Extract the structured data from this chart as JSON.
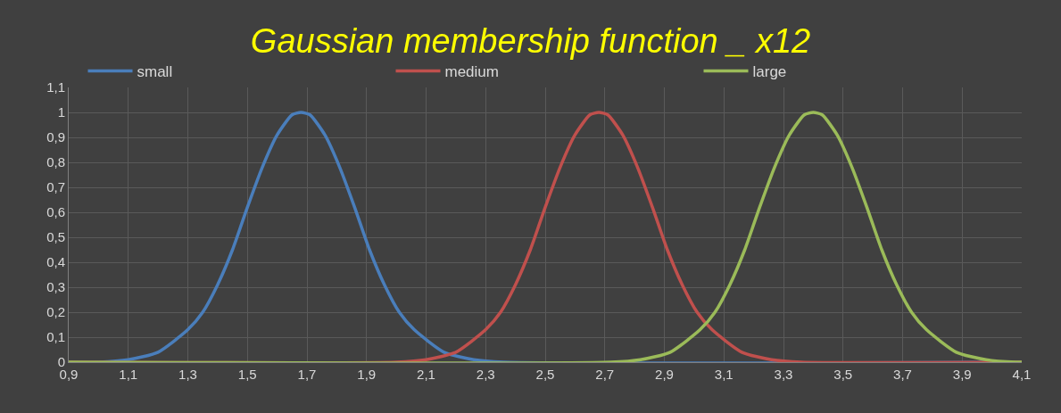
{
  "chart_data": {
    "type": "line",
    "title": "Gaussian membership function _ x12",
    "xlim": [
      0.9,
      4.1
    ],
    "ylim": [
      0,
      1.1
    ],
    "xticks": [
      {
        "value": 0.9,
        "label": "0,9"
      },
      {
        "value": 1.1,
        "label": "1,1"
      },
      {
        "value": 1.3,
        "label": "1,3"
      },
      {
        "value": 1.5,
        "label": "1,5"
      },
      {
        "value": 1.7,
        "label": "1,7"
      },
      {
        "value": 1.9,
        "label": "1,9"
      },
      {
        "value": 2.1,
        "label": "2,1"
      },
      {
        "value": 2.3,
        "label": "2,3"
      },
      {
        "value": 2.5,
        "label": "2,5"
      },
      {
        "value": 2.7,
        "label": "2,7"
      },
      {
        "value": 2.9,
        "label": "2,9"
      },
      {
        "value": 3.1,
        "label": "3,1"
      },
      {
        "value": 3.3,
        "label": "3,3"
      },
      {
        "value": 3.5,
        "label": "3,5"
      },
      {
        "value": 3.7,
        "label": "3,7"
      },
      {
        "value": 3.9,
        "label": "3,9"
      },
      {
        "value": 4.1,
        "label": "4,1"
      }
    ],
    "yticks": [
      0,
      {
        "value": 0.1,
        "label": "0,1"
      },
      {
        "value": 0.2,
        "label": "0,2"
      },
      {
        "value": 0.3,
        "label": "0,3"
      },
      {
        "value": 0.4,
        "label": "0,4"
      },
      {
        "value": 0.5,
        "label": "0,5"
      },
      {
        "value": 0.6,
        "label": "0,6"
      },
      {
        "value": 0.7,
        "label": "0,7"
      },
      {
        "value": 0.8,
        "label": "0,8"
      },
      {
        "value": 0.9,
        "label": "0,9"
      },
      1,
      {
        "value": 1.1,
        "label": "1,1"
      }
    ],
    "grid": true,
    "legend": "top",
    "marker": "none",
    "line_style": "solid",
    "series": [
      {
        "name": "small",
        "color": "#4a7ebb",
        "x": [
          0.9,
          1.0,
          1.1,
          1.2,
          1.3,
          1.35,
          1.4,
          1.45,
          1.5,
          1.55,
          1.6,
          1.65,
          1.68,
          1.71,
          1.76,
          1.81,
          1.86,
          1.91,
          1.96,
          2.01,
          2.06,
          2.16,
          2.26,
          2.36,
          4.1
        ],
        "values": [
          0,
          0,
          0.01,
          0.04,
          0.13,
          0.2,
          0.31,
          0.45,
          0.62,
          0.78,
          0.91,
          0.99,
          1,
          0.99,
          0.91,
          0.78,
          0.62,
          0.45,
          0.31,
          0.2,
          0.13,
          0.04,
          0.01,
          0,
          0
        ]
      },
      {
        "name": "medium",
        "color": "#c0504d",
        "x": [
          0.9,
          2.0,
          2.1,
          2.2,
          2.3,
          2.35,
          2.4,
          2.45,
          2.5,
          2.55,
          2.6,
          2.65,
          2.68,
          2.71,
          2.76,
          2.81,
          2.86,
          2.91,
          2.96,
          3.01,
          3.06,
          3.16,
          3.26,
          3.36,
          4.1
        ],
        "values": [
          0,
          0,
          0.01,
          0.04,
          0.13,
          0.2,
          0.31,
          0.45,
          0.62,
          0.78,
          0.91,
          0.99,
          1,
          0.99,
          0.91,
          0.78,
          0.62,
          0.45,
          0.31,
          0.2,
          0.13,
          0.04,
          0.01,
          0,
          0
        ]
      },
      {
        "name": "large",
        "color": "#9bbb59",
        "x": [
          0.9,
          2.72,
          2.82,
          2.92,
          3.02,
          3.07,
          3.12,
          3.17,
          3.22,
          3.27,
          3.32,
          3.37,
          3.4,
          3.43,
          3.48,
          3.53,
          3.58,
          3.63,
          3.68,
          3.73,
          3.78,
          3.88,
          3.98,
          4.08,
          4.1
        ],
        "values": [
          0,
          0,
          0.01,
          0.04,
          0.13,
          0.2,
          0.31,
          0.45,
          0.62,
          0.78,
          0.91,
          0.99,
          1,
          0.99,
          0.91,
          0.78,
          0.62,
          0.45,
          0.31,
          0.2,
          0.13,
          0.04,
          0.01,
          0,
          0
        ]
      }
    ]
  }
}
